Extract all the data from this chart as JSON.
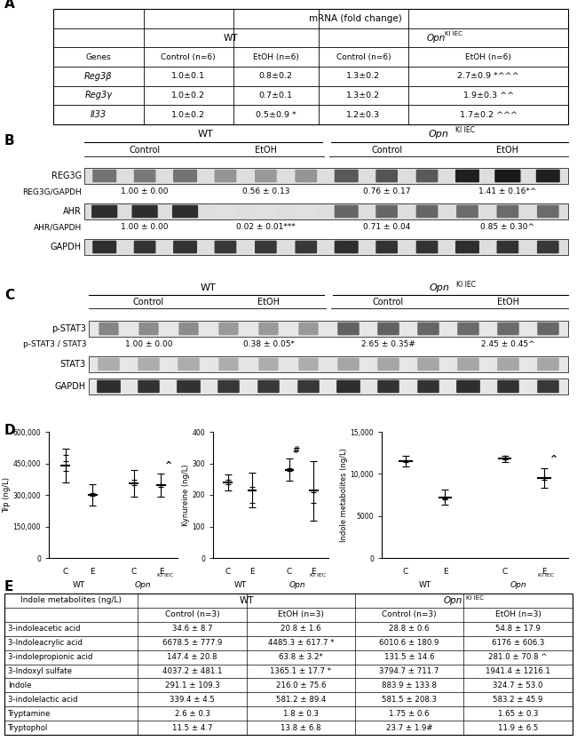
{
  "panel_A": {
    "rows": [
      {
        "gene": "Reg3β",
        "vals": [
          "1.0±0.1",
          "0.8±0.2",
          "1.3±0.2",
          "2.7±0.9 *^^^"
        ]
      },
      {
        "gene": "Reg3γ",
        "vals": [
          "1.0±0.2",
          "0.7±0.1",
          "1.3±0.2",
          "1.9±0.3 ^^"
        ]
      },
      {
        "gene": "Il33",
        "vals": [
          "1.0±0.2",
          "0.5±0.9 *",
          "1.2±0.3",
          "1.7±0.2 ^^^"
        ]
      }
    ]
  },
  "panel_B": {
    "blot_vals_reg3g": [
      "1.00 ± 0.00",
      "0.56 ± 0.13",
      "0.76 ± 0.17",
      "1.41 ± 0.16*^"
    ],
    "blot_vals_ahr": [
      "1.00 ± 0.00",
      "0.02 ± 0.01***",
      "0.71 ± 0.04",
      "0.85 ± 0.30^"
    ]
  },
  "panel_C": {
    "blot_vals_pstat3": [
      "1.00 ± 0.00",
      "0.38 ± 0.05*",
      "2.65 ± 0.35#",
      "2.45 ± 0.45^"
    ]
  },
  "panel_D": {
    "plot_trp": {
      "ylabel": "Trp (ng/L)",
      "ylim": [
        0,
        600000
      ],
      "yticks": [
        0,
        150000,
        300000,
        450000,
        600000
      ],
      "ytick_labels": [
        "0",
        "150,000",
        "300,000",
        "450,000",
        "600,000"
      ],
      "wt": {
        "c_mean": 440000,
        "c_sd": 80000,
        "c_pts": [
          460000,
          415000,
          490000
        ],
        "e_mean": 300000,
        "e_sd": 50000,
        "e_pts": [
          295000,
          310000,
          298000
        ]
      },
      "opn": {
        "c_mean": 355000,
        "c_sd": 65000,
        "c_pts": [
          345000,
          360000,
          370000
        ],
        "e_mean": 345000,
        "e_sd": 55000,
        "e_pts": [
          340000,
          350000,
          345000
        ],
        "e_ann": "^"
      }
    },
    "plot_kyn": {
      "ylabel": "Kynureine (ng/L)",
      "ylim": [
        0,
        400
      ],
      "yticks": [
        0,
        100,
        200,
        300,
        400
      ],
      "ytick_labels": [
        "0",
        "100",
        "200",
        "300",
        "400"
      ],
      "wt": {
        "c_mean": 240,
        "c_sd": 25,
        "c_pts": [
          235,
          248,
          242
        ],
        "e_mean": 215,
        "e_sd": 55,
        "e_pts": [
          175,
          225,
          218
        ]
      },
      "opn": {
        "c_mean": 280,
        "c_sd": 35,
        "c_pts": [
          275,
          285,
          280
        ],
        "c_ann": "#",
        "e_mean": 213,
        "e_sd": 95,
        "e_pts": [
          175,
          215,
          208
        ]
      }
    },
    "plot_indole": {
      "ylabel": "Indole metabolites (ng/L)",
      "ylim": [
        0,
        15000
      ],
      "yticks": [
        0,
        5000,
        10000,
        15000
      ],
      "ytick_labels": [
        "0",
        "5000",
        "10,000",
        "15,000"
      ],
      "wt": {
        "c_mean": 11500,
        "c_sd": 600,
        "c_pts": [
          11400,
          11600,
          11500
        ],
        "e_mean": 7200,
        "e_sd": 900,
        "e_pts": [
          7000,
          7300,
          7100
        ],
        "e_ann": "*"
      },
      "opn": {
        "c_mean": 11800,
        "c_sd": 400,
        "c_pts": [
          11700,
          11900,
          11800
        ],
        "e_mean": 9500,
        "e_sd": 1200,
        "e_pts": [
          9300,
          9600,
          9500
        ],
        "e_ann": "^"
      }
    }
  },
  "panel_E": {
    "rows": [
      {
        "compound": "3-indoleacetic acid",
        "vals": [
          "34.6 ± 8.7",
          "20.8 ± 1.6",
          "28.8 ± 0.6",
          "54.8 ± 17.9"
        ]
      },
      {
        "compound": "3-Indoleacrylic acid",
        "vals": [
          "6678.5 ± 777.9",
          "4485.3 ± 617.7 *",
          "6010.6 ± 180.9",
          "6176 ± 606.3"
        ]
      },
      {
        "compound": "3-indolepropionic acid",
        "vals": [
          "147.4 ± 20.8",
          "63.8 ± 3.2*",
          "131.5 ± 14.6",
          "281.0 ± 70.8 ^"
        ]
      },
      {
        "compound": "3-Indoxyl sulfate",
        "vals": [
          "4037.2 ± 481.1",
          "1365.1 ± 17.7 *",
          "3794.7 ± 711.7",
          "1941.4 ± 1216.1"
        ]
      },
      {
        "compound": "Indole",
        "vals": [
          "291.1 ± 109.3",
          "216.0 ± 75.6",
          "883.9 ± 133.8",
          "324.7 ± 53.0"
        ]
      },
      {
        "compound": "3-indolelactic acid",
        "vals": [
          "339.4 ± 4.5",
          "581.2 ± 89.4",
          "581.5 ± 208.3",
          "583.2 ± 45.9"
        ]
      },
      {
        "compound": "Tryptamine",
        "vals": [
          "2.6 ± 0.3",
          "1.8 ± 0.3",
          "1.75 ± 0.6",
          "1.65 ± 0.3"
        ]
      },
      {
        "compound": "Tryptophol",
        "vals": [
          "11.5 ± 4.7",
          "13.8 ± 6.8",
          "23.7 ± 1.9#",
          "11.9 ± 6.5"
        ]
      }
    ]
  }
}
